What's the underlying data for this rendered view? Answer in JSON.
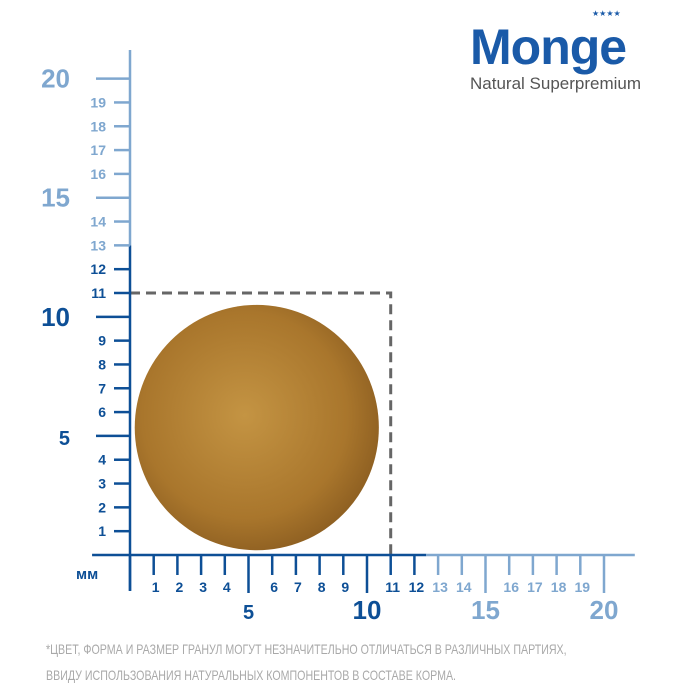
{
  "logo": {
    "brand": "Monge",
    "tagline": "Natural Superpremium",
    "stars": "★★★★"
  },
  "ruler": {
    "unit": "мм",
    "max": 20,
    "kibble_size_mm": 11,
    "dark_until_mm": 12.5,
    "colors": {
      "dark": "#0d4f96",
      "light": "#7fa7cf",
      "guide": "#666666",
      "kibble": "#b98a3a"
    }
  },
  "disclaimer": {
    "line1": "*ЦВЕТ, ФОРМА И РАЗМЕР ГРАНУЛ МОГУТ НЕЗНАЧИТЕЛЬНО ОТЛИЧАТЬСЯ В РАЗЛИЧНЫХ ПАРТИЯХ,",
    "line2": "ВВИДУ ИСПОЛЬЗОВАНИЯ НАТУРАЛЬНЫХ КОМПОНЕНТОВ В СОСТАВЕ КОРМА."
  }
}
